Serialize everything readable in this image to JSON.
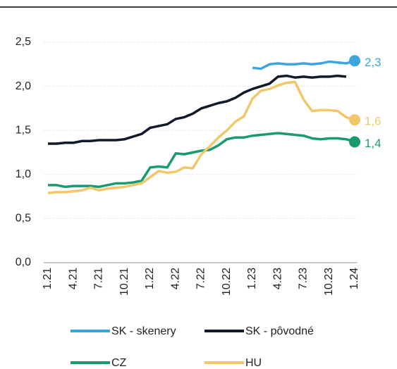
{
  "chart_data": {
    "type": "line",
    "categories": [
      "1.21",
      null,
      null,
      "4.21",
      null,
      null,
      "7.21",
      null,
      null,
      "10.21",
      null,
      null,
      "1.22",
      null,
      null,
      "4.22",
      null,
      null,
      "7.22",
      null,
      null,
      "10.22",
      null,
      null,
      "1.23",
      null,
      null,
      "4.23",
      null,
      null,
      "7.23",
      null,
      null,
      "10.23",
      null,
      null,
      "1.24"
    ],
    "series": [
      {
        "name": "SK - skenery",
        "color": "#3aa6dd",
        "values": [
          null,
          null,
          null,
          null,
          null,
          null,
          null,
          null,
          null,
          null,
          null,
          null,
          null,
          null,
          null,
          null,
          null,
          null,
          null,
          null,
          null,
          null,
          null,
          null,
          2.21,
          2.2,
          2.25,
          2.26,
          2.25,
          2.25,
          2.26,
          2.25,
          2.26,
          2.28,
          2.27,
          2.26,
          2.29
        ],
        "value_labels": [
          null,
          null,
          null,
          null,
          null,
          null,
          null,
          null,
          null,
          null,
          null,
          null,
          null,
          null,
          null,
          null,
          null,
          null,
          null,
          null,
          null,
          null,
          null,
          null,
          null,
          null,
          null,
          null,
          null,
          null,
          null,
          null,
          null,
          null,
          null,
          null,
          "2,3"
        ]
      },
      {
        "name": "SK - pôvodné",
        "color": "#0f1a2b",
        "values": [
          1.35,
          1.35,
          1.36,
          1.36,
          1.38,
          1.38,
          1.39,
          1.39,
          1.39,
          1.4,
          1.43,
          1.46,
          1.53,
          1.55,
          1.57,
          1.63,
          1.65,
          1.69,
          1.75,
          1.78,
          1.81,
          1.83,
          1.87,
          1.93,
          1.97,
          2.0,
          2.03,
          2.11,
          2.12,
          2.1,
          2.11,
          2.1,
          2.11,
          2.11,
          2.12,
          2.11,
          null
        ]
      },
      {
        "name": "CZ",
        "color": "#1a9a70",
        "values": [
          0.88,
          0.88,
          0.86,
          0.87,
          0.87,
          0.87,
          0.86,
          0.88,
          0.9,
          0.9,
          0.91,
          0.93,
          1.08,
          1.09,
          1.08,
          1.24,
          1.23,
          1.25,
          1.27,
          1.28,
          1.33,
          1.4,
          1.42,
          1.42,
          1.44,
          1.45,
          1.46,
          1.47,
          1.46,
          1.45,
          1.44,
          1.41,
          1.4,
          1.41,
          1.41,
          1.4,
          1.37
        ],
        "value_labels": [
          null,
          null,
          null,
          null,
          null,
          null,
          null,
          null,
          null,
          null,
          null,
          null,
          null,
          null,
          null,
          null,
          null,
          null,
          null,
          null,
          null,
          null,
          null,
          null,
          null,
          null,
          null,
          null,
          null,
          null,
          null,
          null,
          null,
          null,
          null,
          null,
          "1,4"
        ]
      },
      {
        "name": "HU",
        "color": "#f1c76a",
        "values": [
          0.79,
          0.8,
          0.8,
          0.81,
          0.82,
          0.85,
          0.82,
          0.84,
          0.85,
          0.86,
          0.88,
          0.9,
          0.97,
          1.04,
          1.02,
          1.03,
          1.08,
          1.07,
          1.23,
          1.32,
          1.42,
          1.5,
          1.6,
          1.66,
          1.86,
          1.95,
          1.97,
          2.01,
          2.04,
          2.05,
          1.85,
          1.72,
          1.73,
          1.73,
          1.72,
          1.65,
          1.62
        ],
        "value_labels": [
          null,
          null,
          null,
          null,
          null,
          null,
          null,
          null,
          null,
          null,
          null,
          null,
          null,
          null,
          null,
          null,
          null,
          null,
          null,
          null,
          null,
          null,
          null,
          null,
          null,
          null,
          null,
          null,
          null,
          null,
          null,
          null,
          null,
          null,
          null,
          null,
          "1,6"
        ]
      }
    ],
    "ylim": [
      0,
      2.5
    ],
    "yticks": [
      {
        "value": 0,
        "label": "0,0"
      },
      {
        "value": 0.5,
        "label": "0,5"
      },
      {
        "value": 1,
        "label": "1,0"
      },
      {
        "value": 1.5,
        "label": "1,5"
      },
      {
        "value": 2,
        "label": "2,0"
      },
      {
        "value": 2.5,
        "label": "2,5"
      }
    ],
    "grid": true,
    "legend": "bottom"
  }
}
